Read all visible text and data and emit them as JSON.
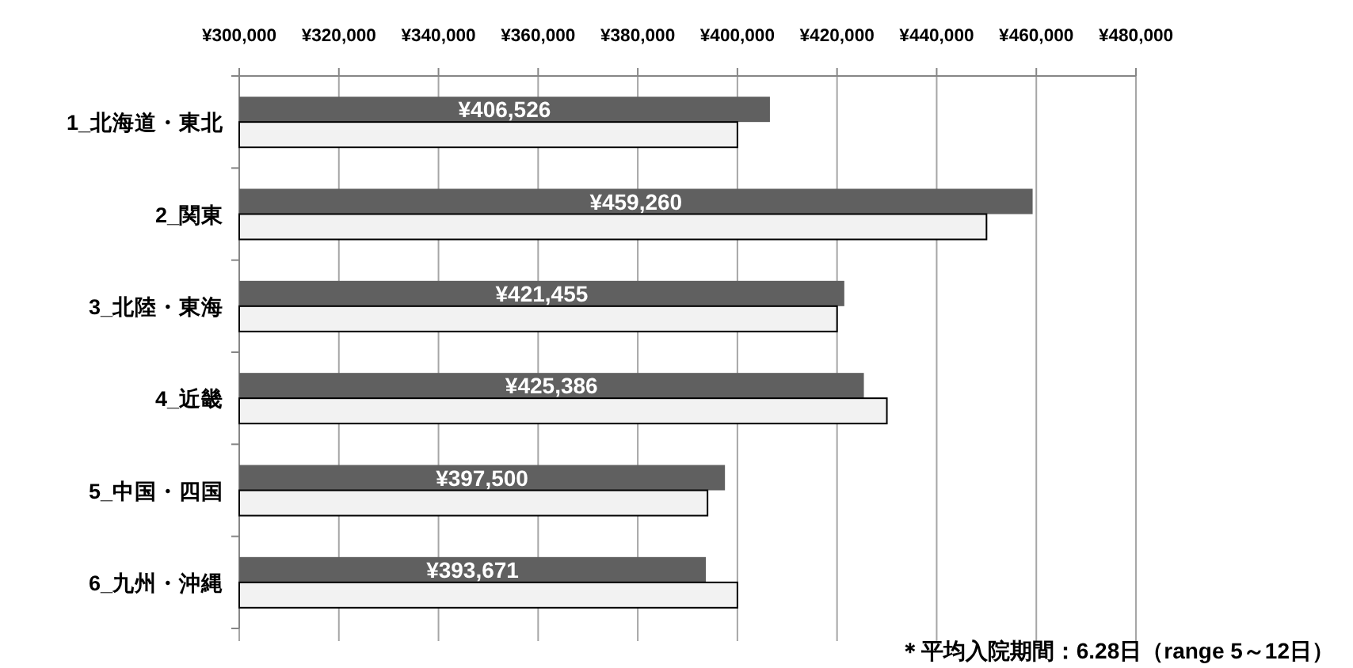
{
  "chart_data": {
    "type": "bar",
    "orientation": "horizontal",
    "grid": "x",
    "categories": [
      "1_北海道・東北",
      "2_関東",
      "3_北陸・東海",
      "4_近畿",
      "5_中国・四国",
      "6_九州・沖縄"
    ],
    "series": [
      {
        "color": "#606060",
        "values": [
          406526,
          459260,
          421455,
          425386,
          397500,
          393671
        ],
        "value_labels": [
          "¥406,526",
          "¥459,260",
          "¥421,455",
          "¥425,386",
          "¥397,500",
          "¥393,671"
        ]
      },
      {
        "color": "#f2f2f2",
        "values": [
          400000,
          450000,
          420000,
          430000,
          394000,
          400000
        ]
      }
    ],
    "xlim": [
      300000,
      480000
    ],
    "xticks": [
      {
        "value": 300000,
        "label": "¥300,000"
      },
      {
        "value": 320000,
        "label": "¥320,000"
      },
      {
        "value": 340000,
        "label": "¥340,000"
      },
      {
        "value": 360000,
        "label": "¥360,000"
      },
      {
        "value": 380000,
        "label": "¥380,000"
      },
      {
        "value": 400000,
        "label": "¥400,000"
      },
      {
        "value": 420000,
        "label": "¥420,000"
      },
      {
        "value": 440000,
        "label": "¥440,000"
      },
      {
        "value": 460000,
        "label": "¥460,000"
      },
      {
        "value": 480000,
        "label": "¥480,000"
      }
    ],
    "annotations": [
      "＊平均入院期間：6.28日（range 5～12日）"
    ]
  }
}
